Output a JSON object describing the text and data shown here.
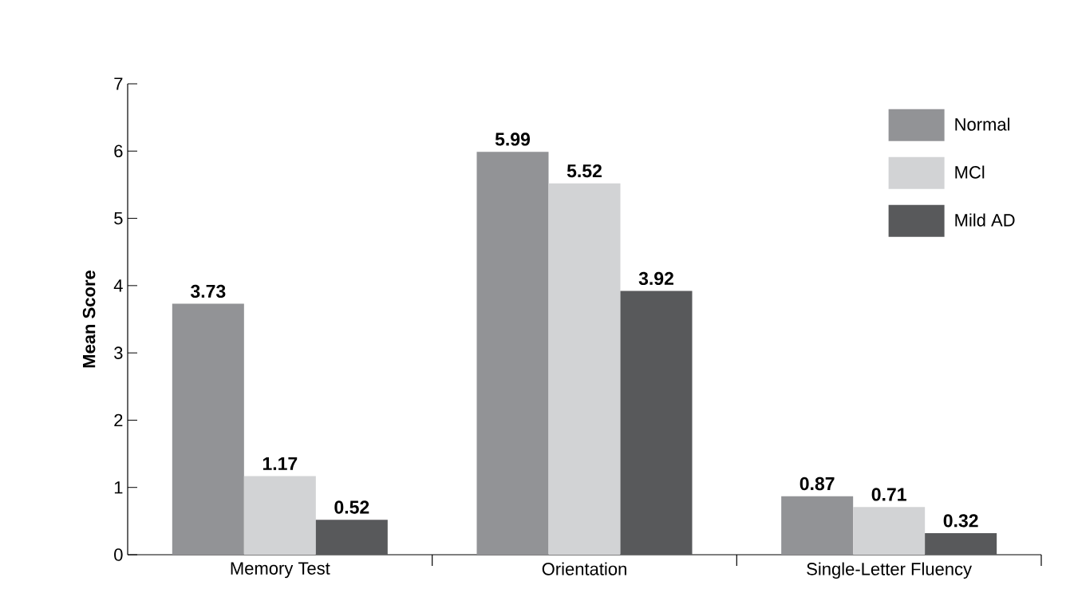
{
  "chart_data": {
    "type": "bar",
    "ylabel": "Mean Score",
    "categories": [
      "Memory Test",
      "Orientation",
      "Single-Letter Fluency"
    ],
    "series": [
      {
        "name": "Normal",
        "color": "#929396",
        "values": [
          3.73,
          5.99,
          0.87
        ]
      },
      {
        "name": "MCl",
        "color": "#d2d3d5",
        "values": [
          1.17,
          5.52,
          0.71
        ]
      },
      {
        "name": "Mild AD",
        "color": "#58595b",
        "values": [
          0.52,
          3.92,
          0.32
        ]
      }
    ],
    "ylim": [
      0,
      7
    ],
    "yticks": [
      0,
      1,
      2,
      3,
      4,
      5,
      6,
      7
    ],
    "data_labels": true,
    "legend": "top right",
    "grid": false
  }
}
